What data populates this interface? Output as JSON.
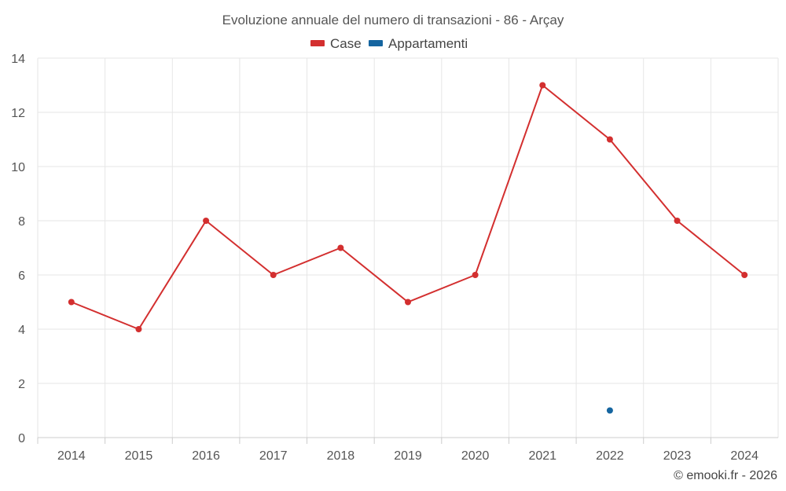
{
  "chart_data": {
    "type": "line",
    "title": "Evoluzione annuale del numero di transazioni - 86 - Arçay",
    "categories": [
      "2014",
      "2015",
      "2016",
      "2017",
      "2018",
      "2019",
      "2020",
      "2021",
      "2022",
      "2023",
      "2024"
    ],
    "series": [
      {
        "name": "Case",
        "color": "#d32f2f",
        "values": [
          5,
          4,
          8,
          6,
          7,
          5,
          6,
          13,
          11,
          8,
          6
        ]
      },
      {
        "name": "Appartamenti",
        "color": "#1565a0",
        "values": [
          null,
          null,
          null,
          null,
          null,
          null,
          null,
          null,
          1,
          null,
          null
        ]
      }
    ],
    "ylim": [
      0,
      14
    ],
    "yticks": [
      "0",
      "2",
      "4",
      "6",
      "8",
      "10",
      "12",
      "14"
    ],
    "grid": true,
    "legend": "top-center",
    "credit": "© emooki.fr - 2026"
  }
}
